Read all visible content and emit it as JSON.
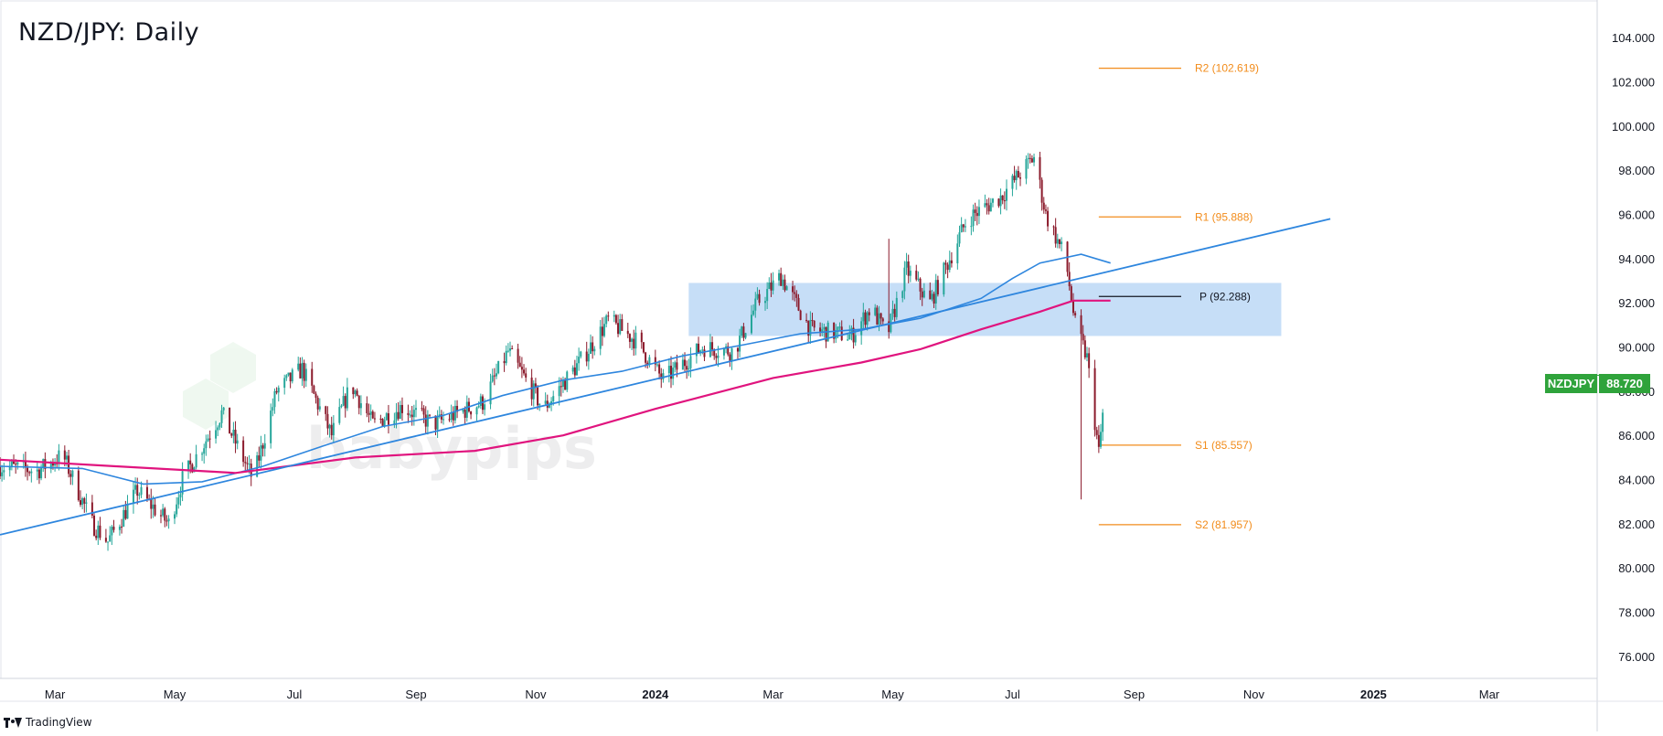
{
  "title": "NZD/JPY: Daily",
  "footer": {
    "brand": "TradingView"
  },
  "watermark": "babypips",
  "colors": {
    "up": "#26a69a",
    "down": "#8b1a2b",
    "ma_short": "#2e86de",
    "ma_long": "#e0147e",
    "trendline": "#2e86de",
    "zone": "#bcd8f6",
    "pivot_r": "#f28c1b",
    "pivot_p": "#131722",
    "badge": "#2fa33b"
  },
  "chart_data": {
    "type": "candlestick",
    "symbol": "NZDJPY",
    "timeframe": "Daily",
    "last_price": "88.720",
    "x_axis": {
      "labels": [
        "Mar",
        "May",
        "Jul",
        "Sep",
        "Nov",
        "2024",
        "Mar",
        "May",
        "Jul",
        "Sep",
        "Nov",
        "2025",
        "Mar"
      ],
      "bold_labels": [
        "2024",
        "2025"
      ],
      "range": [
        "2023-02-01",
        "2025-04-25"
      ]
    },
    "y_axis": {
      "labels": [
        "104.000",
        "102.000",
        "100.000",
        "98.000",
        "96.000",
        "94.000",
        "92.000",
        "90.000",
        "88.000",
        "86.000",
        "84.000",
        "82.000",
        "80.000",
        "78.000",
        "76.000"
      ],
      "range": [
        75,
        105.5
      ],
      "side": "right"
    },
    "price_anchors": [
      [
        "2023-02-01",
        84.6
      ],
      [
        "2023-02-20",
        84.4
      ],
      [
        "2023-03-05",
        85.1
      ],
      [
        "2023-03-20",
        82.0
      ],
      [
        "2023-03-28",
        81.2
      ],
      [
        "2023-04-12",
        83.5
      ],
      [
        "2023-04-28",
        82.0
      ],
      [
        "2023-05-05",
        84.0
      ],
      [
        "2023-05-25",
        87.0
      ],
      [
        "2023-06-10",
        84.0
      ],
      [
        "2023-06-22",
        88.0
      ],
      [
        "2023-07-05",
        89.0
      ],
      [
        "2023-07-20",
        86.0
      ],
      [
        "2023-07-30",
        88.3
      ],
      [
        "2023-08-10",
        86.5
      ],
      [
        "2023-08-25",
        87.3
      ],
      [
        "2023-09-10",
        86.5
      ],
      [
        "2023-10-05",
        87.5
      ],
      [
        "2023-10-18",
        89.8
      ],
      [
        "2023-11-05",
        87.2
      ],
      [
        "2023-11-25",
        89.5
      ],
      [
        "2023-12-08",
        91.2
      ],
      [
        "2023-12-22",
        90.3
      ],
      [
        "2024-01-05",
        88.5
      ],
      [
        "2024-01-25",
        90.0
      ],
      [
        "2024-02-10",
        89.8
      ],
      [
        "2024-02-22",
        92.0
      ],
      [
        "2024-03-05",
        93.2
      ],
      [
        "2024-03-20",
        90.8
      ],
      [
        "2024-04-10",
        90.5
      ],
      [
        "2024-04-20",
        91.8
      ],
      [
        "2024-04-28",
        90.5
      ],
      [
        "2024-05-08",
        93.5
      ],
      [
        "2024-05-20",
        92.0
      ],
      [
        "2024-06-08",
        95.8
      ],
      [
        "2024-06-25",
        96.8
      ],
      [
        "2024-07-12",
        98.6
      ],
      [
        "2024-07-18",
        96.0
      ],
      [
        "2024-07-28",
        94.0
      ],
      [
        "2024-08-02",
        91.0
      ],
      [
        "2024-08-08",
        89.5
      ],
      [
        "2024-08-14",
        85.2
      ],
      [
        "2024-08-18",
        88.7
      ]
    ],
    "moving_averages": [
      {
        "name": "MA short",
        "color": "#2e86de",
        "points": [
          [
            "2023-02-01",
            84.6
          ],
          [
            "2023-03-15",
            84.5
          ],
          [
            "2023-04-15",
            83.8
          ],
          [
            "2023-05-15",
            83.9
          ],
          [
            "2023-06-15",
            84.6
          ],
          [
            "2023-07-15",
            85.5
          ],
          [
            "2023-08-15",
            86.4
          ],
          [
            "2023-09-15",
            86.9
          ],
          [
            "2023-10-15",
            87.8
          ],
          [
            "2023-11-15",
            88.5
          ],
          [
            "2023-12-15",
            88.9
          ],
          [
            "2024-01-15",
            89.6
          ],
          [
            "2024-02-15",
            90.1
          ],
          [
            "2024-03-15",
            90.6
          ],
          [
            "2024-04-15",
            90.8
          ],
          [
            "2024-05-15",
            91.3
          ],
          [
            "2024-06-15",
            92.2
          ],
          [
            "2024-07-01",
            93.1
          ],
          [
            "2024-07-15",
            93.8
          ],
          [
            "2024-08-05",
            94.2
          ],
          [
            "2024-08-20",
            93.8
          ]
        ]
      },
      {
        "name": "MA long",
        "color": "#e0147e",
        "points": [
          [
            "2023-02-01",
            84.9
          ],
          [
            "2023-04-01",
            84.6
          ],
          [
            "2023-06-01",
            84.3
          ],
          [
            "2023-08-01",
            85.0
          ],
          [
            "2023-10-01",
            85.3
          ],
          [
            "2023-11-15",
            86.0
          ],
          [
            "2024-01-01",
            87.2
          ],
          [
            "2024-03-01",
            88.6
          ],
          [
            "2024-04-15",
            89.3
          ],
          [
            "2024-05-15",
            89.9
          ],
          [
            "2024-06-15",
            90.8
          ],
          [
            "2024-07-15",
            91.6
          ],
          [
            "2024-08-01",
            92.1
          ],
          [
            "2024-08-20",
            92.1
          ]
        ]
      }
    ],
    "trendline": {
      "from": [
        "2023-02-01",
        81.5
      ],
      "to": [
        "2024-12-10",
        95.8
      ]
    },
    "zone": {
      "from": "2024-01-18",
      "to": "2024-11-15",
      "low": 90.5,
      "high": 92.9
    },
    "pivot_levels": [
      {
        "name": "R2",
        "value": 102.619,
        "label": "R2 (102.619)",
        "color": "#f28c1b"
      },
      {
        "name": "R1",
        "value": 95.888,
        "label": "R1 (95.888)",
        "color": "#f28c1b"
      },
      {
        "name": "P",
        "value": 92.288,
        "label": "P (92.288)",
        "color": "#131722"
      },
      {
        "name": "S1",
        "value": 85.557,
        "label": "S1 (85.557)",
        "color": "#f28c1b"
      },
      {
        "name": "S2",
        "value": 81.957,
        "label": "S2 (81.957)",
        "color": "#f28c1b"
      }
    ],
    "pivot_span": [
      "2024-08-14",
      "2024-09-25"
    ]
  }
}
